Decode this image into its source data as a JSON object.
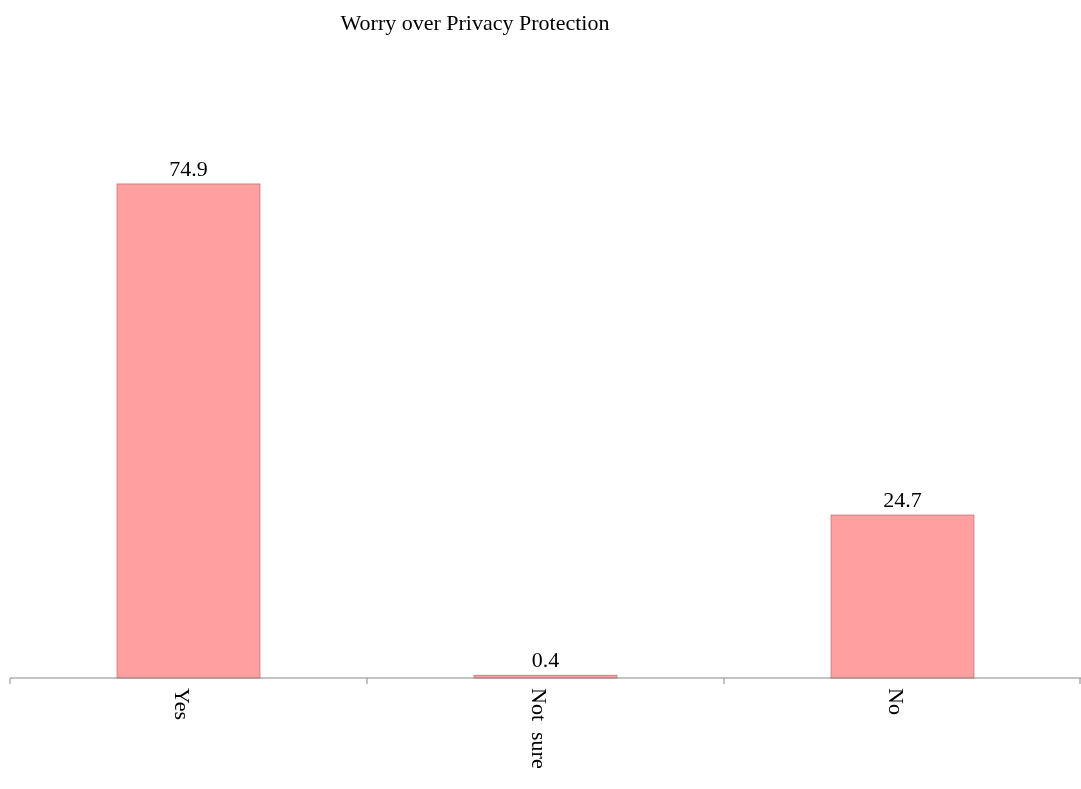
{
  "chart_data": {
    "type": "bar",
    "title": "Worry over Privacy Protection",
    "categories": [
      "Yes",
      "Not  sure",
      "No"
    ],
    "values": [
      74.9,
      0.4,
      24.7
    ],
    "color": "#ff9f9f",
    "data_labels": true
  }
}
